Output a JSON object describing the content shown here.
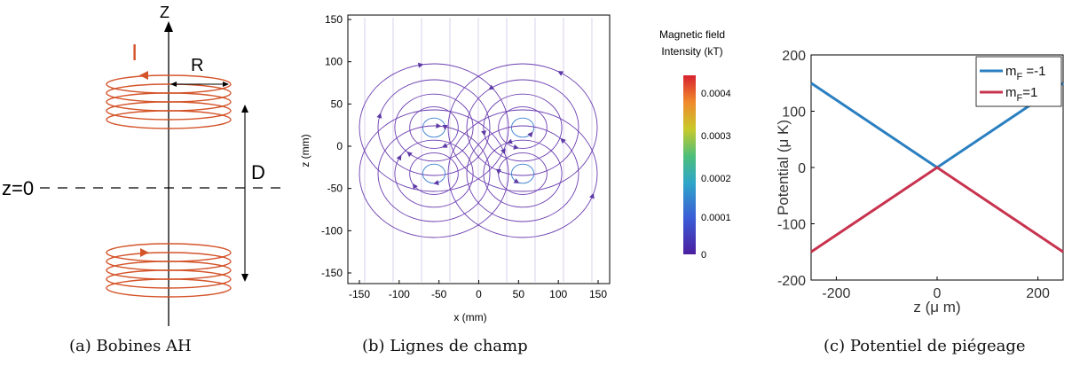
{
  "panel_a": {
    "caption": "(a) Bobines AH",
    "axis_label": "Z",
    "current_label": "I",
    "radius_label": "R",
    "distance_label": "D",
    "plane_label": "z=0",
    "coil_color": "#d4542a"
  },
  "panel_b": {
    "caption": "(b) Lignes de champ",
    "colorbar_title_line1": "Magnetic field",
    "colorbar_title_line2": "Intensity (kT)",
    "colorbar_ticks": [
      "0.0004",
      "0.0003",
      "0.0002",
      "0.0001",
      "0"
    ],
    "x_ticks": [
      "-150",
      "-100",
      "-50",
      "0",
      "50",
      "100",
      "150"
    ],
    "y_ticks": [
      "150",
      "100",
      "50",
      "0",
      "-50",
      "-100",
      "-150"
    ]
  },
  "chart_data": {
    "type": "line",
    "caption": "(c) Potentiel de piégeage",
    "xlabel": "z (μ m)",
    "ylabel": "Potential (μ K)",
    "xlim": [
      -250,
      250
    ],
    "ylim": [
      -200,
      200
    ],
    "x_ticks": [
      "-200",
      "0",
      "200"
    ],
    "y_ticks": [
      "200",
      "100",
      "0",
      "-100",
      "-200"
    ],
    "legend_position": "top-right",
    "series": [
      {
        "name_main": "m",
        "name_sub": "F",
        "name_tail": " =-1",
        "color": "#2a7fc1",
        "x": [
          -250,
          0,
          250
        ],
        "y": [
          150,
          0,
          150
        ]
      },
      {
        "name_main": "m",
        "name_sub": "F",
        "name_tail": "=1",
        "color": "#c8334f",
        "x": [
          -250,
          0,
          250
        ],
        "y": [
          -150,
          0,
          -150
        ]
      }
    ]
  }
}
